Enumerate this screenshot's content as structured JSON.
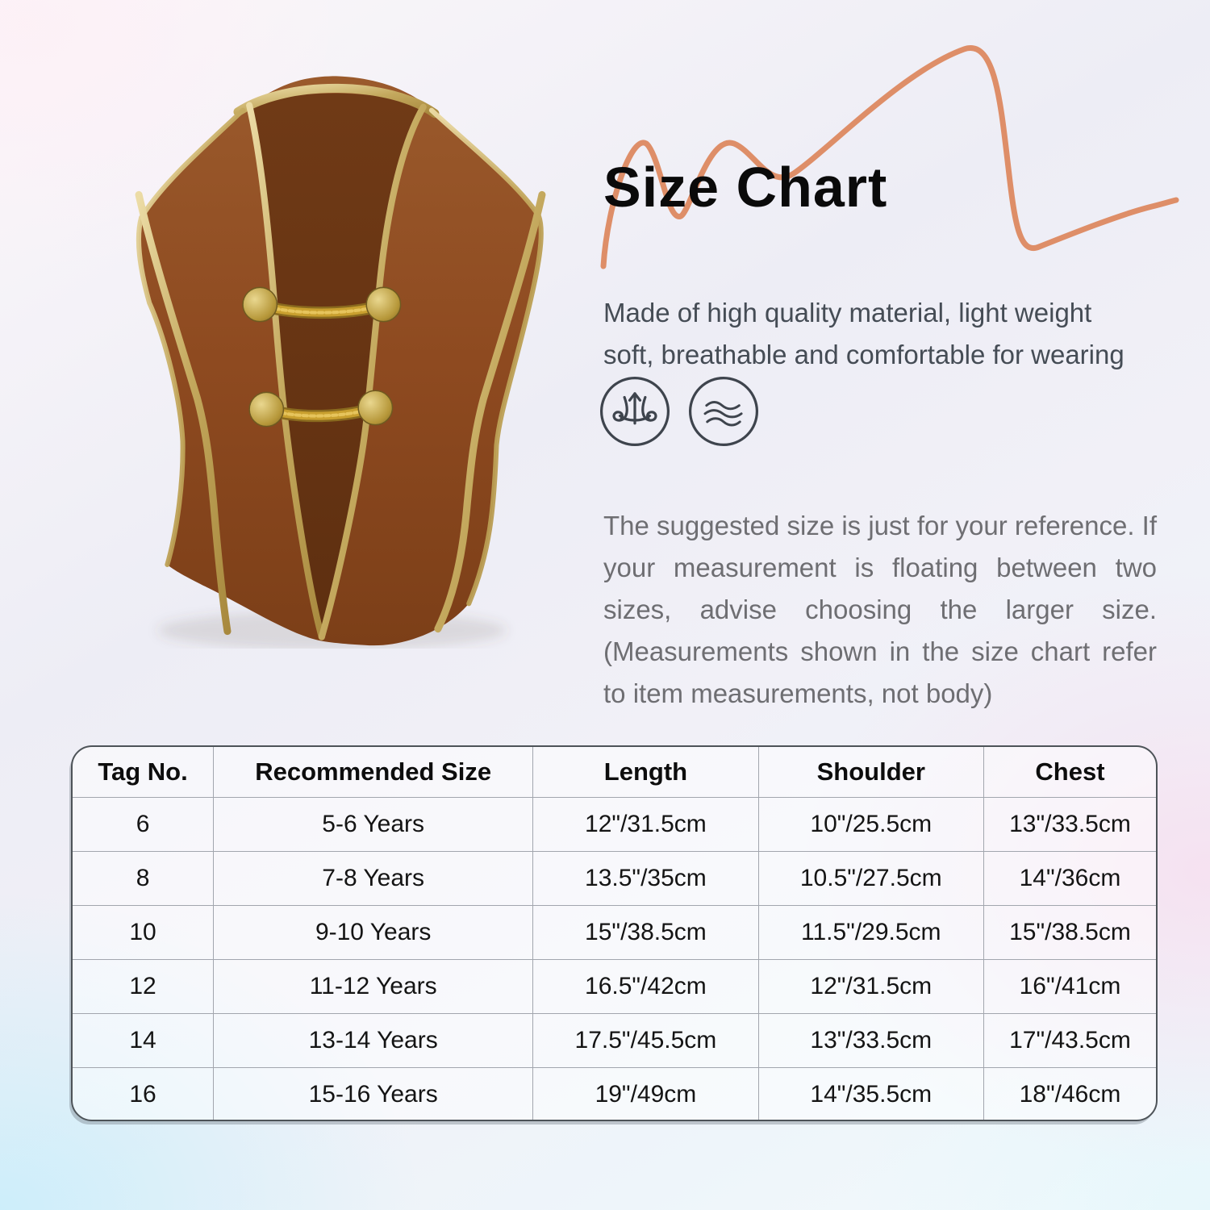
{
  "header": {
    "title": "Size Chart"
  },
  "description": {
    "line1": "Made of high quality material, light weight",
    "line2": "soft, breathable and comfortable for wearing"
  },
  "feature_icons": [
    {
      "name": "breathable-fabric-icon"
    },
    {
      "name": "soft-wave-icon"
    }
  ],
  "note": {
    "text": "The suggested size is just for your reference. If your measurement is floating between two sizes, advise choosing the larger size. (Measurements shown in the size chart refer to item measurements, not body)"
  },
  "size_table": {
    "columns": [
      "Tag No.",
      "Recommended Size",
      "Length",
      "Shoulder",
      "Chest"
    ],
    "col_widths": [
      "13%",
      "29.5%",
      "20.8%",
      "20.8%",
      "15.9%"
    ],
    "rows": [
      [
        "6",
        "5-6 Years",
        "12\"/31.5cm",
        "10\"/25.5cm",
        "13\"/33.5cm"
      ],
      [
        "8",
        "7-8 Years",
        "13.5\"/35cm",
        "10.5\"/27.5cm",
        "14\"/36cm"
      ],
      [
        "10",
        "9-10 Years",
        "15\"/38.5cm",
        "11.5\"/29.5cm",
        "15\"/38.5cm"
      ],
      [
        "12",
        "11-12 Years",
        "16.5\"/42cm",
        "12\"/31.5cm",
        "16\"/41cm"
      ],
      [
        "14",
        "13-14 Years",
        "17.5\"/45.5cm",
        "13\"/33.5cm",
        "17\"/43.5cm"
      ],
      [
        "16",
        "15-16 Years",
        "19\"/49cm",
        "14\"/35.5cm",
        "18\"/46cm"
      ]
    ]
  },
  "colors": {
    "squiggle": "#de8e68",
    "vest_brown": "#8e4a20",
    "vest_inner_brown": "#66330f",
    "gold_trim": "#c9ad5e",
    "icon_stroke": "#3e444d",
    "table_border": "#4d5358",
    "title_text": "#0a0a0a"
  }
}
